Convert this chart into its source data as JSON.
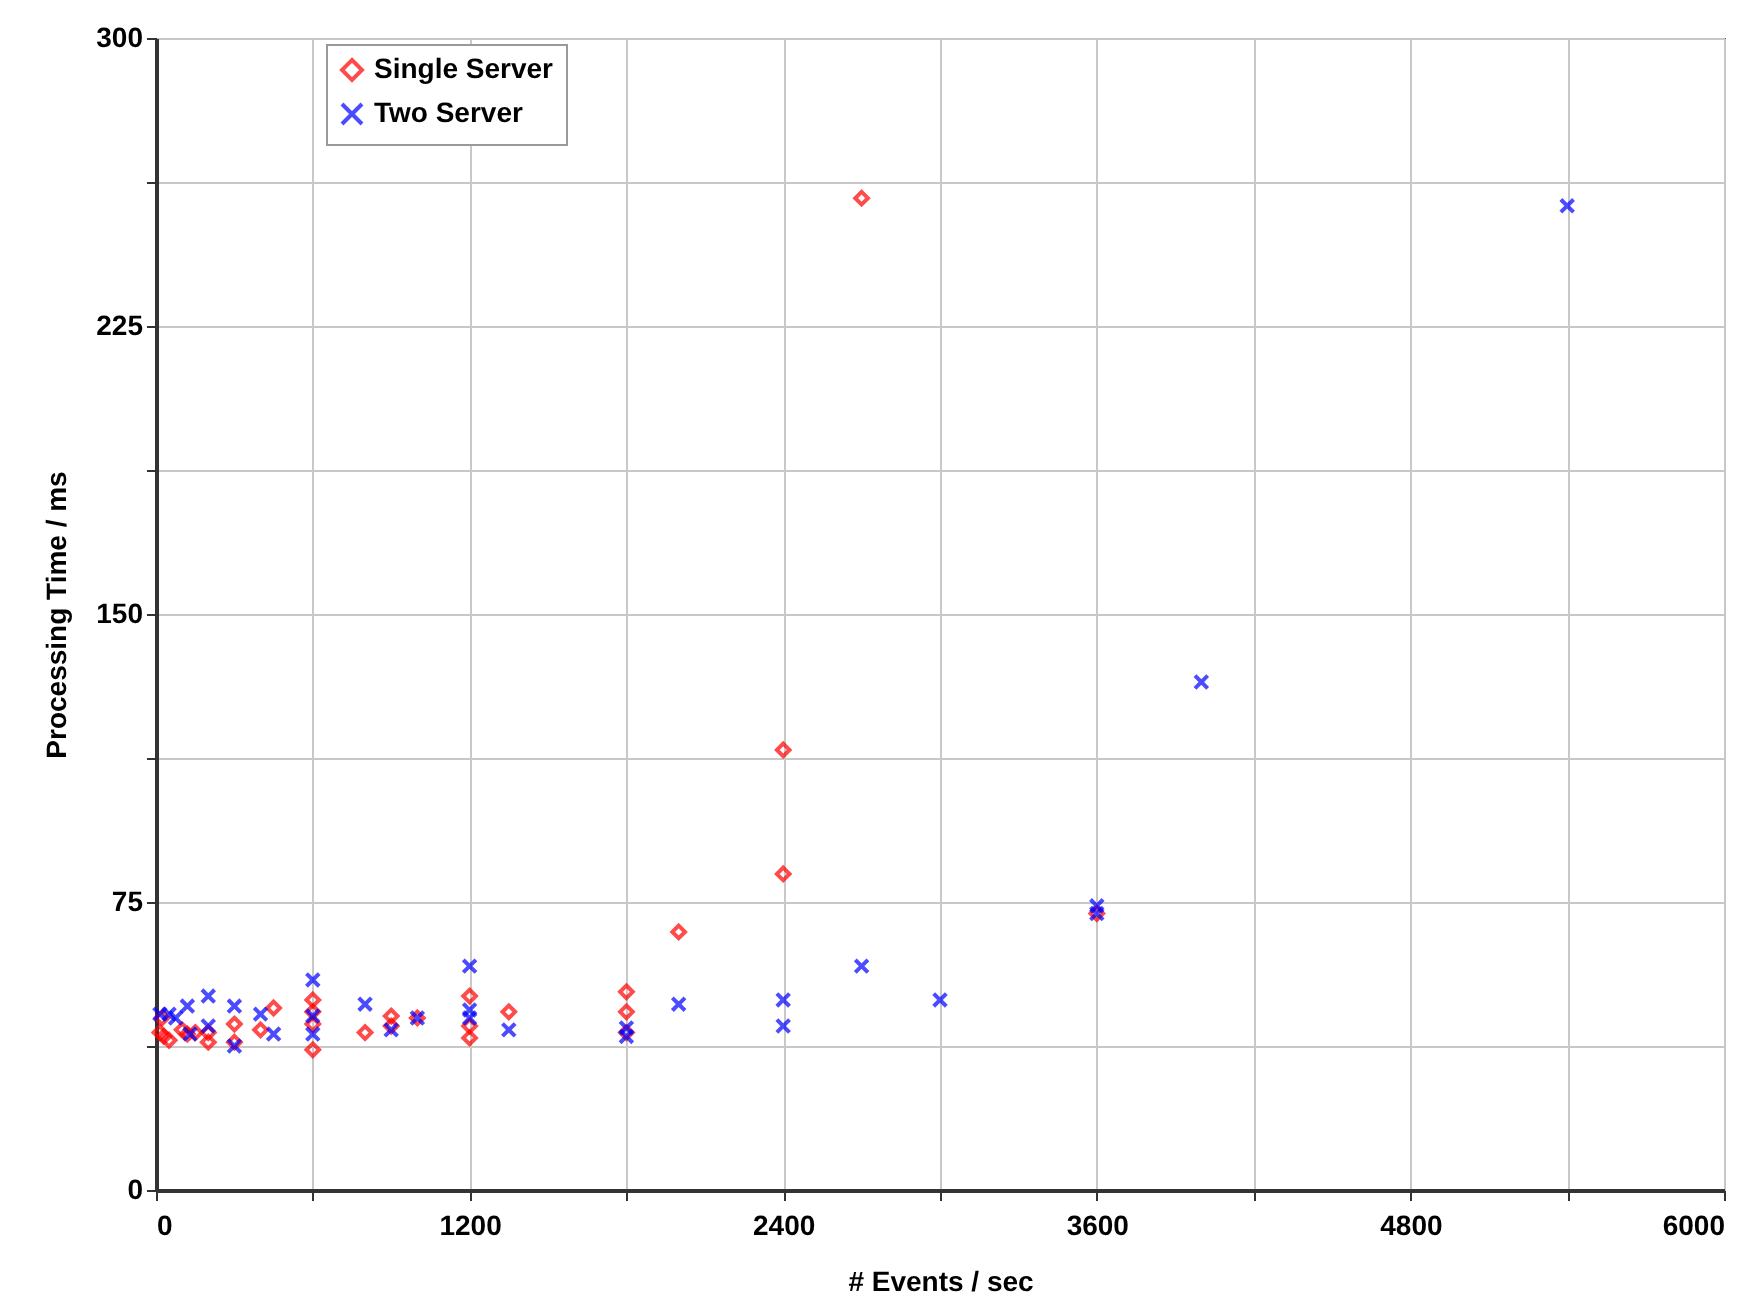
{
  "chart_data": {
    "type": "scatter",
    "xlabel": "# Events / sec",
    "ylabel": "Processing Time / ms",
    "xlim": [
      0,
      6000
    ],
    "ylim": [
      0,
      300
    ],
    "xticks": [
      0,
      {
        "value": 600,
        "label": null
      },
      1200,
      {
        "value": 1800,
        "label": null
      },
      2400,
      {
        "value": 3000,
        "label": null
      },
      3600,
      {
        "value": 4200,
        "label": null
      },
      4800,
      {
        "value": 5400,
        "label": null
      },
      6000
    ],
    "yticks": [
      0,
      {
        "value": 37.5,
        "label": null
      },
      75,
      {
        "value": 112.5,
        "label": null
      },
      150,
      {
        "value": 187.5,
        "label": null
      },
      225,
      {
        "value": 262.5,
        "label": null
      },
      300
    ],
    "grid": true,
    "legend": "top left",
    "series": [
      {
        "name": "Single Server",
        "color": "#ff0000",
        "marker": "diamond",
        "x": [
          15,
          23,
          30,
          50,
          100,
          120,
          150,
          200,
          200,
          300,
          300,
          400,
          450,
          600,
          600,
          600,
          600,
          800,
          900,
          900,
          1000,
          1200,
          1200,
          1200,
          1350,
          1800,
          1800,
          1800,
          2000,
          2400,
          2400,
          2700,
          3600
        ],
        "values": [
          41,
          44.8,
          40,
          39,
          41.7,
          40.6,
          41,
          41,
          38.5,
          43.2,
          38.5,
          41.7,
          47.4,
          49.5,
          46.4,
          43.2,
          36.5,
          41,
          45.3,
          42.7,
          44.8,
          50.5,
          42.7,
          39.6,
          46.4,
          51.6,
          46.4,
          41,
          67.2,
          82.3,
          114.6,
          258.3,
          72
        ]
      },
      {
        "name": "Two Server",
        "color": "#0000ff",
        "marker": "cross",
        "x": [
          15,
          50,
          75,
          120,
          130,
          200,
          200,
          300,
          300,
          400,
          450,
          600,
          600,
          600,
          800,
          900,
          1000,
          1200,
          1200,
          1200,
          1350,
          1800,
          1800,
          2000,
          2400,
          2400,
          2700,
          3000,
          3600,
          3600,
          4000,
          5400
        ],
        "values": [
          45.8,
          45.8,
          44.8,
          47.9,
          40.6,
          50.5,
          42.7,
          47.9,
          37.5,
          45.8,
          40.6,
          54.7,
          45.3,
          40.6,
          48.4,
          41.7,
          44.8,
          58.3,
          46.9,
          44.8,
          41.7,
          42.2,
          40,
          48.4,
          49.5,
          42.7,
          58.3,
          49.5,
          72,
          74,
          132.3,
          256.3
        ]
      }
    ]
  }
}
